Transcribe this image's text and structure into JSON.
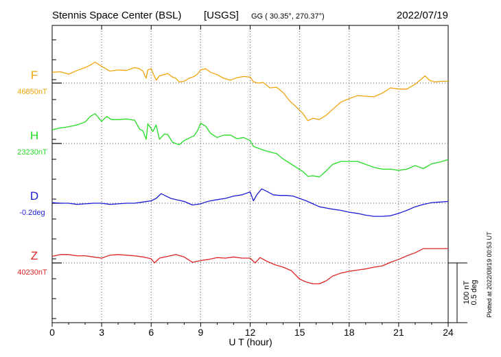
{
  "header": {
    "station": "Stennis Space Center (BSL)",
    "agency": "[USGS]",
    "coords": "GG ( 30.35°, 270.37°)",
    "date": "2022/07/19"
  },
  "footer_note": "Plotted at 2022/08/19 00:53 UT",
  "scale_bar": {
    "line1": "100 nT",
    "line2": "0.5 deg"
  },
  "chart_data": {
    "type": "line",
    "title": "Stennis Space Center (BSL)  [USGS]",
    "xlabel": "U T (hour)",
    "ylabel": "",
    "xlim": [
      0,
      24
    ],
    "x_ticks": [
      0,
      3,
      6,
      9,
      12,
      15,
      18,
      21,
      24
    ],
    "x_tick_labels": [
      "0",
      "3",
      "6",
      "9",
      "12",
      "15",
      "18",
      "21",
      "24"
    ],
    "grid": true,
    "grid_style": "dotted",
    "scale": "100 nT / 0.5 deg per bar",
    "series": [
      {
        "name": "F",
        "baseline_label": "46850nT",
        "unit": "nT",
        "color": "#f0a30a",
        "x": [
          0,
          0.5,
          1,
          1.5,
          2,
          2.3,
          2.6,
          3,
          3.5,
          4,
          4.5,
          5,
          5.3,
          5.5,
          5.7,
          5.8,
          6,
          6.1,
          6.3,
          6.5,
          7,
          7.3,
          7.5,
          7.7,
          8,
          8.3,
          8.6,
          8.8,
          9,
          9.3,
          9.6,
          10,
          10.4,
          10.8,
          11.2,
          11.6,
          12,
          12.2,
          12.5,
          12.8,
          13.2,
          13.6,
          14,
          14.4,
          14.8,
          15.2,
          15.5,
          15.8,
          16.2,
          16.6,
          17,
          17.5,
          18,
          18.5,
          19,
          19.5,
          20,
          20.5,
          21,
          21.5,
          22,
          22.3,
          22.6,
          22.9,
          23.2,
          23.6,
          24
        ],
        "values": [
          118,
          119,
          115,
          121,
          126,
          130,
          135,
          128,
          120,
          122,
          121,
          126,
          124,
          120,
          108,
          122,
          124,
          117,
          105,
          112,
          116,
          110,
          108,
          102,
          103,
          108,
          111,
          115,
          122,
          124,
          118,
          114,
          108,
          105,
          109,
          111,
          110,
          102,
          100,
          101,
          92,
          93,
          84,
          70,
          60,
          49,
          37,
          41,
          39,
          46,
          56,
          68,
          74,
          79,
          78,
          77,
          83,
          92,
          90,
          90,
          98,
          105,
          112,
          104,
          102,
          103,
          103
        ],
        "baseline_value": 100
      },
      {
        "name": "H",
        "baseline_label": "23230nT",
        "unit": "nT",
        "color": "#22dd22",
        "x": [
          0,
          0.5,
          1,
          1.5,
          2,
          2.3,
          2.6,
          3,
          3.3,
          3.6,
          4,
          4.5,
          5,
          5.3,
          5.5,
          5.7,
          5.8,
          6,
          6.1,
          6.3,
          6.5,
          6.8,
          7,
          7.3,
          7.5,
          7.7,
          8,
          8.3,
          8.6,
          8.8,
          9,
          9.3,
          9.6,
          10,
          10.4,
          10.8,
          11.2,
          11.6,
          12,
          12.2,
          12.5,
          12.8,
          13.2,
          13.6,
          14,
          14.4,
          14.8,
          15.2,
          15.5,
          15.8,
          16.2,
          16.6,
          17,
          17.5,
          18,
          18.5,
          19,
          19.5,
          20,
          20.5,
          21,
          21.5,
          22,
          22.5,
          23,
          23.5,
          24
        ],
        "values": [
          123,
          126,
          128,
          131,
          136,
          145,
          150,
          137,
          145,
          140,
          140,
          141,
          139,
          124,
          121,
          107,
          133,
          125,
          120,
          131,
          107,
          116,
          115,
          102,
          100,
          98,
          105,
          109,
          113,
          121,
          134,
          129,
          117,
          110,
          114,
          114,
          108,
          110,
          105,
          95,
          92,
          89,
          86,
          83,
          74,
          67,
          60,
          53,
          45,
          46,
          44,
          54,
          65,
          70,
          70,
          70,
          65,
          60,
          57,
          57,
          55,
          57,
          63,
          58,
          66,
          69,
          73
        ],
        "baseline_value": 100
      },
      {
        "name": "D",
        "baseline_label": "-0.2deg",
        "unit": "deg",
        "color": "#1a1ad6",
        "x": [
          0,
          0.5,
          1,
          1.5,
          2,
          2.5,
          3,
          3.5,
          4,
          4.5,
          5,
          5.5,
          6,
          6.3,
          6.6,
          6.9,
          7.2,
          7.5,
          8,
          8.5,
          9,
          9.3,
          9.6,
          10,
          10.5,
          11,
          11.5,
          12,
          12.2,
          12.4,
          12.7,
          13,
          13.4,
          13.8,
          14.2,
          14.6,
          15,
          15.4,
          15.8,
          16.2,
          16.6,
          17,
          17.5,
          18,
          18.5,
          19,
          19.5,
          20,
          20.5,
          21,
          21.5,
          22,
          22.5,
          23,
          23.5,
          24
        ],
        "values": [
          101,
          100,
          100,
          98,
          99,
          100,
          100,
          98,
          99,
          100,
          100,
          102,
          104,
          108,
          116,
          112,
          108,
          106,
          103,
          97,
          99,
          102,
          104,
          106,
          108,
          112,
          114,
          119,
          104,
          114,
          124,
          120,
          114,
          113,
          113,
          112,
          108,
          104,
          99,
          94,
          92,
          90,
          88,
          85,
          83,
          80,
          78,
          78,
          79,
          83,
          88,
          94,
          98,
          101,
          102,
          103
        ],
        "baseline_value": 100
      },
      {
        "name": "Z",
        "baseline_label": "40230nT",
        "unit": "nT",
        "color": "#dd2222",
        "x": [
          0,
          0.5,
          1,
          1.5,
          2,
          2.5,
          3,
          3.5,
          4,
          4.5,
          5,
          5.5,
          6,
          6.2,
          6.5,
          7,
          7.5,
          8,
          8.5,
          9,
          9.5,
          10,
          10.5,
          11,
          11.5,
          12,
          12.3,
          12.6,
          13,
          13.5,
          14,
          14.5,
          15,
          15.4,
          15.8,
          16.2,
          16.6,
          17,
          17.5,
          18,
          18.5,
          19,
          19.5,
          20,
          20.5,
          21,
          21.5,
          22,
          22.5,
          23,
          23.5,
          24
        ],
        "values": [
          111,
          114,
          114,
          112,
          112,
          110,
          108,
          113,
          114,
          113,
          112,
          110,
          107,
          100,
          108,
          111,
          114,
          110,
          101,
          104,
          106,
          109,
          108,
          110,
          108,
          108,
          100,
          109,
          103,
          97,
          93,
          87,
          73,
          68,
          65,
          65,
          70,
          78,
          83,
          86,
          88,
          90,
          93,
          95,
          101,
          106,
          112,
          117,
          124,
          124,
          124,
          124
        ],
        "baseline_value": 100
      }
    ]
  }
}
